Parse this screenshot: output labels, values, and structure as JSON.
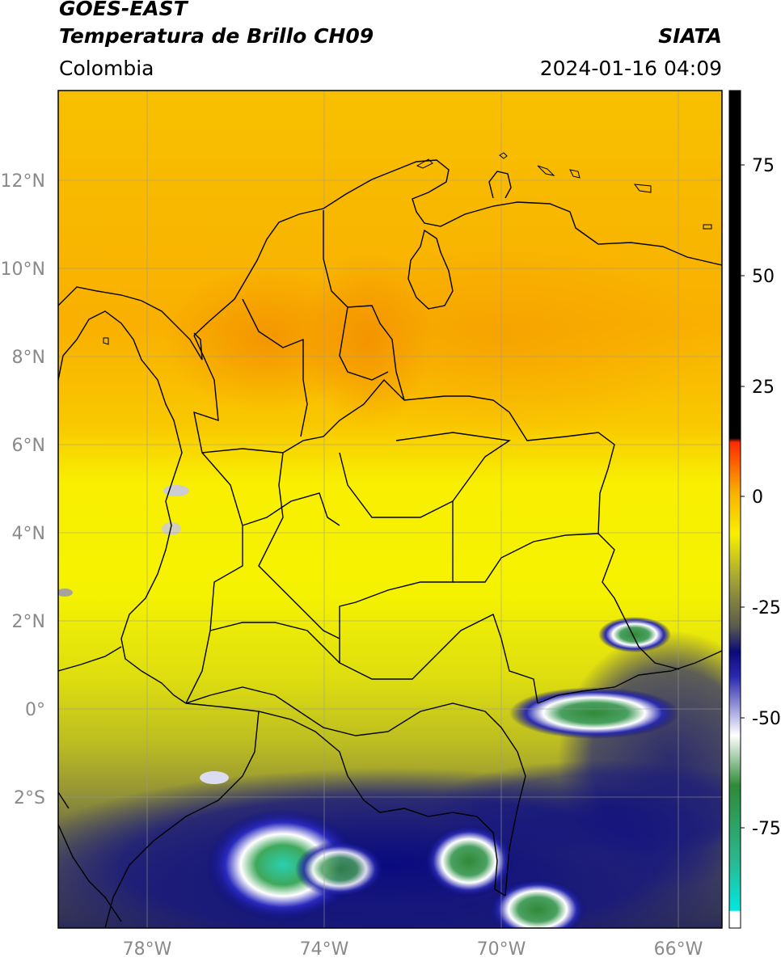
{
  "header": {
    "satellite": "GOES-EAST",
    "product": "Temperatura de Brillo CH09",
    "region": "Colombia",
    "source": "SIATA",
    "datetime": "2024-01-16 04:09"
  },
  "map": {
    "lat_labels": [
      "12°N",
      "10°N",
      "8°N",
      "6°N",
      "4°N",
      "2°N",
      "0°",
      "2°S"
    ],
    "lat_values": [
      12,
      10,
      8,
      6,
      4,
      2,
      0,
      -2
    ],
    "lon_labels": [
      "78°W",
      "74°W",
      "70°W",
      "66°W"
    ],
    "lon_values": [
      -78,
      -74,
      -70,
      -66
    ],
    "lon_range": [
      -80,
      -65
    ],
    "lat_range": [
      -4.95,
      14.0
    ],
    "gridlines": true
  },
  "colorbar": {
    "tick_labels": [
      "75",
      "50",
      "25",
      "0",
      "-25",
      "-50",
      "-75"
    ],
    "tick_values": [
      75,
      50,
      25,
      0,
      -25,
      -50,
      -75
    ],
    "range": [
      -97,
      90
    ],
    "unit_hint": "°C"
  },
  "colors": {
    "warm_orange": "#f9a800",
    "yellow": "#f7f500",
    "olive": "#8f8f3a",
    "navy": "#0a0a7a",
    "green": "#2f8a38",
    "teal": "#2ad0b0",
    "black": "#000000",
    "red": "#ff2a00"
  }
}
